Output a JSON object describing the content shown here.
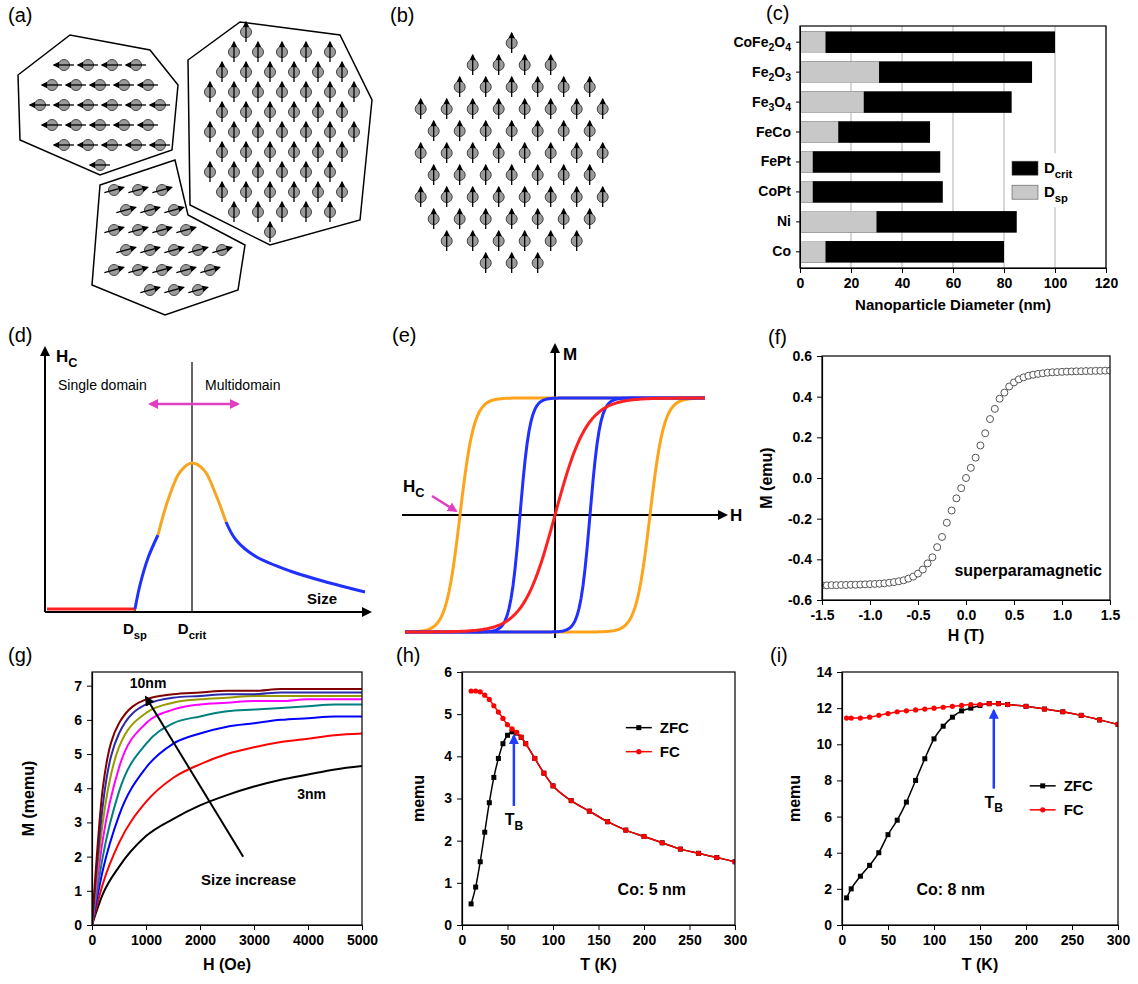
{
  "chart_data": [
    {
      "panel_label": "(c)",
      "type": "bar",
      "orientation": "horizontal",
      "categories": [
        "CoFe2O4",
        "Fe2O3",
        "Fe3O4",
        "FeCo",
        "FePt",
        "CoPt",
        "Ni",
        "Co"
      ],
      "series": [
        {
          "name": "Dcrit",
          "color": "#000000",
          "values": [
            100,
            91,
            83,
            51,
            55,
            56,
            85,
            80
          ]
        },
        {
          "name": "Dsp",
          "color": "#c8c8c8",
          "values": [
            10,
            31,
            25,
            15,
            5,
            5,
            30,
            10
          ]
        }
      ],
      "x_label": "Nanoparticle Diameter (nm)",
      "xlim": [
        0,
        120
      ],
      "xticks": [
        0,
        20,
        40,
        60,
        80,
        100,
        120
      ],
      "grid": true,
      "legend": "right"
    },
    {
      "panel_label": "(f)",
      "type": "scatter",
      "x": [
        -1.5,
        -1.45,
        -1.4,
        -1.35,
        -1.3,
        -1.25,
        -1.2,
        -1.15,
        -1.1,
        -1.05,
        -1,
        -0.95,
        -0.9,
        -0.85,
        -0.8,
        -0.75,
        -0.7,
        -0.65,
        -0.6,
        -0.55,
        -0.5,
        -0.45,
        -0.4,
        -0.35,
        -0.3,
        -0.25,
        -0.2,
        -0.15,
        -0.1,
        -0.05,
        0,
        0.05,
        0.1,
        0.15,
        0.2,
        0.25,
        0.3,
        0.35,
        0.4,
        0.45,
        0.5,
        0.55,
        0.6,
        0.65,
        0.7,
        0.75,
        0.8,
        0.85,
        0.9,
        0.95,
        1,
        1.05,
        1.1,
        1.15,
        1.2,
        1.25,
        1.3,
        1.35,
        1.4,
        1.45,
        1.5
      ],
      "series": [
        {
          "color": "#555555",
          "marker": "open-circle",
          "values": [
            -0.528,
            -0.528,
            -0.527,
            -0.527,
            -0.526,
            -0.526,
            -0.525,
            -0.525,
            -0.524,
            -0.523,
            -0.522,
            -0.521,
            -0.52,
            -0.518,
            -0.515,
            -0.512,
            -0.508,
            -0.503,
            -0.495,
            -0.485,
            -0.47,
            -0.45,
            -0.42,
            -0.39,
            -0.34,
            -0.29,
            -0.22,
            -0.16,
            -0.1,
            -0.05,
            0,
            0.05,
            0.1,
            0.16,
            0.22,
            0.29,
            0.34,
            0.39,
            0.42,
            0.45,
            0.47,
            0.485,
            0.495,
            0.503,
            0.508,
            0.512,
            0.515,
            0.518,
            0.52,
            0.521,
            0.522,
            0.523,
            0.524,
            0.525,
            0.525,
            0.526,
            0.526,
            0.527,
            0.527,
            0.528,
            0.528
          ]
        }
      ],
      "x_label": "H (T)",
      "y_label": "M (emu)",
      "xlim": [
        -1.5,
        1.5
      ],
      "xticks": [
        -1.5,
        {
          "value": -1,
          "label": "-1.0"
        },
        -0.5,
        {
          "value": 0,
          "label": "0.0"
        },
        0.5,
        {
          "value": 1,
          "label": "1.0"
        },
        1.5
      ],
      "ylim": [
        -0.6,
        0.6
      ],
      "yticks": [
        -0.6,
        -0.4,
        -0.2,
        {
          "value": 0,
          "label": "0.0"
        },
        0.2,
        0.4,
        0.6
      ],
      "annotation": "superparamagnetic"
    },
    {
      "panel_label": "(g)",
      "type": "line",
      "x": [
        0,
        200,
        500,
        1000,
        1500,
        2000,
        2500,
        3000,
        3500,
        4000,
        4500,
        5000
      ],
      "series": [
        {
          "color": "#000000",
          "values": [
            0,
            0.9,
            1.7,
            2.6,
            3.1,
            3.5,
            3.8,
            4.05,
            4.25,
            4.4,
            4.55,
            4.65
          ]
        },
        {
          "color": "#ff0000",
          "values": [
            0,
            1.2,
            2.4,
            3.6,
            4.3,
            4.7,
            5.0,
            5.2,
            5.35,
            5.45,
            5.55,
            5.6
          ]
        },
        {
          "color": "#0000ff",
          "values": [
            0,
            1.6,
            3.2,
            4.6,
            5.3,
            5.6,
            5.8,
            5.9,
            6.0,
            6.05,
            6.1,
            6.1
          ]
        },
        {
          "color": "#008080",
          "values": [
            0,
            2.0,
            3.9,
            5.3,
            5.9,
            6.1,
            6.25,
            6.3,
            6.35,
            6.4,
            6.45,
            6.45
          ]
        },
        {
          "color": "#ff00ff",
          "values": [
            0,
            2.5,
            4.6,
            5.9,
            6.3,
            6.45,
            6.5,
            6.55,
            6.55,
            6.6,
            6.6,
            6.6
          ]
        },
        {
          "color": "#999900",
          "values": [
            0,
            3.0,
            5.2,
            6.2,
            6.5,
            6.6,
            6.65,
            6.7,
            6.7,
            6.7,
            6.7,
            6.7
          ]
        },
        {
          "color": "#2a2aa8",
          "values": [
            0,
            3.5,
            5.6,
            6.45,
            6.65,
            6.7,
            6.75,
            6.75,
            6.8,
            6.8,
            6.8,
            6.8
          ]
        },
        {
          "color": "#800000",
          "values": [
            0,
            4.0,
            5.9,
            6.6,
            6.75,
            6.8,
            6.85,
            6.85,
            6.9,
            6.9,
            6.9,
            6.9
          ]
        }
      ],
      "x_label": "H (Oe)",
      "y_label": "M (memu)",
      "xlim": [
        0,
        5000
      ],
      "xticks": [
        0,
        1000,
        2000,
        3000,
        4000,
        5000
      ],
      "ylim": [
        0,
        7.4
      ],
      "yticks": [
        0,
        1,
        2,
        3,
        4,
        5,
        6,
        7
      ],
      "annotations": [
        "10nm",
        "3nm",
        "Size increase"
      ]
    },
    {
      "panel_label": "(h)",
      "type": "line",
      "x": [
        10,
        15,
        20,
        25,
        30,
        35,
        40,
        45,
        50,
        55,
        60,
        65,
        70,
        80,
        90,
        100,
        120,
        140,
        160,
        180,
        200,
        220,
        240,
        260,
        280,
        300
      ],
      "series": [
        {
          "name": "ZFC",
          "color": "#000000",
          "marker": "square",
          "values": [
            0.5,
            0.9,
            1.5,
            2.2,
            2.9,
            3.5,
            3.95,
            4.3,
            4.5,
            4.58,
            4.55,
            4.45,
            4.3,
            3.95,
            3.6,
            3.3,
            2.95,
            2.7,
            2.45,
            2.25,
            2.1,
            1.95,
            1.8,
            1.7,
            1.6,
            1.5
          ]
        },
        {
          "name": "FC",
          "color": "#ff0000",
          "marker": "circle",
          "values": [
            5.55,
            5.55,
            5.53,
            5.45,
            5.35,
            5.2,
            5.05,
            4.9,
            4.75,
            4.65,
            4.57,
            4.46,
            4.3,
            3.95,
            3.6,
            3.3,
            2.95,
            2.7,
            2.45,
            2.25,
            2.1,
            1.95,
            1.8,
            1.7,
            1.6,
            1.5
          ]
        }
      ],
      "x_label": "T (K)",
      "y_label": "memu",
      "xlim": [
        0,
        300
      ],
      "xticks": [
        0,
        50,
        100,
        150,
        200,
        250,
        300
      ],
      "ylim": [
        0,
        6
      ],
      "yticks": [
        0,
        1,
        2,
        3,
        4,
        5,
        6
      ],
      "legend": "right",
      "annotations": [
        {
          "text": "TB",
          "x": 57
        },
        {
          "text": "Co: 5 nm"
        }
      ]
    },
    {
      "panel_label": "(i)",
      "type": "line",
      "x": [
        5,
        10,
        20,
        30,
        40,
        50,
        60,
        70,
        80,
        90,
        100,
        110,
        120,
        130,
        140,
        150,
        160,
        170,
        180,
        200,
        220,
        240,
        260,
        280,
        300
      ],
      "series": [
        {
          "name": "ZFC",
          "color": "#000000",
          "marker": "square",
          "values": [
            1.5,
            2.0,
            2.7,
            3.3,
            4.0,
            5.0,
            5.8,
            6.8,
            8.0,
            9.2,
            10.3,
            11.0,
            11.5,
            11.85,
            12.0,
            12.15,
            12.25,
            12.25,
            12.2,
            12.1,
            11.95,
            11.8,
            11.6,
            11.35,
            11.1
          ]
        },
        {
          "name": "FC",
          "color": "#ff0000",
          "marker": "circle",
          "values": [
            11.45,
            11.45,
            11.45,
            11.5,
            11.6,
            11.7,
            11.8,
            11.85,
            11.9,
            11.95,
            12.0,
            12.05,
            12.1,
            12.15,
            12.2,
            12.2,
            12.25,
            12.25,
            12.2,
            12.1,
            11.95,
            11.8,
            11.6,
            11.35,
            11.1
          ]
        }
      ],
      "x_label": "T (K)",
      "y_label": "memu",
      "xlim": [
        0,
        300
      ],
      "xticks": [
        0,
        50,
        100,
        150,
        200,
        250,
        300
      ],
      "ylim": [
        0,
        14
      ],
      "yticks": [
        0,
        2,
        4,
        6,
        8,
        10,
        12,
        14
      ],
      "legend": "right",
      "annotations": [
        {
          "text": "TB",
          "x": 165
        },
        {
          "text": "Co: 8 nm"
        }
      ]
    }
  ],
  "diagrams": [
    {
      "panel_label": "(a)"
    },
    {
      "panel_label": "(b)"
    },
    {
      "panel_label": "(d)",
      "y_label": "HC",
      "x_label": "Size",
      "markers": [
        "Dsp",
        "Dcrit"
      ],
      "regions": [
        "Single domain",
        "Multidomain"
      ]
    },
    {
      "panel_label": "(e)",
      "y_label": "M",
      "x_label": "H",
      "annotation": "HC"
    }
  ]
}
